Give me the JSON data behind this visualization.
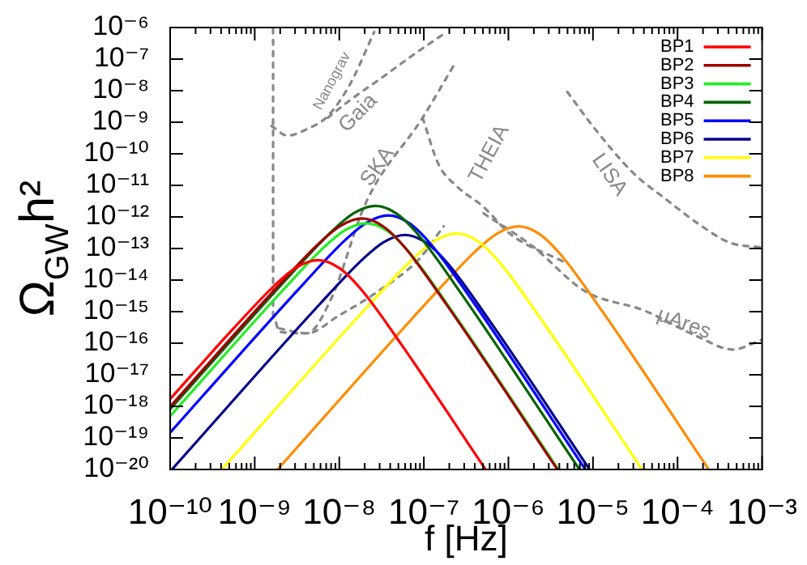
{
  "chart_data": {
    "type": "line",
    "xlabel": "f [Hz]",
    "ylabel": "Ω$_{GW}$h²",
    "log": "xy",
    "grid": false,
    "legend": "top right",
    "marker": "none",
    "xlim": [
      1e-10,
      0.001
    ],
    "ylim": [
      1e-20,
      1e-06
    ],
    "xticks": [
      {
        "value": 1e-10,
        "label": "10⁻¹⁰"
      },
      {
        "value": 2e-10,
        "label": null
      },
      {
        "value": 3e-10,
        "label": null
      },
      {
        "value": 4e-10,
        "label": null
      },
      {
        "value": 5e-10,
        "label": null
      },
      {
        "value": 6e-10,
        "label": null
      },
      {
        "value": 7e-10,
        "label": null
      },
      {
        "value": 8e-10,
        "label": null
      },
      {
        "value": 9e-10,
        "label": null
      },
      {
        "value": 1e-09,
        "label": "10⁻⁹"
      },
      {
        "value": 2e-09,
        "label": null
      },
      {
        "value": 3e-09,
        "label": null
      },
      {
        "value": 4e-09,
        "label": null
      },
      {
        "value": 5e-09,
        "label": null
      },
      {
        "value": 6e-09,
        "label": null
      },
      {
        "value": 7e-09,
        "label": null
      },
      {
        "value": 8e-09,
        "label": null
      },
      {
        "value": 9e-09,
        "label": null
      },
      {
        "value": 1e-08,
        "label": "10⁻⁸"
      },
      {
        "value": 2e-08,
        "label": null
      },
      {
        "value": 3e-08,
        "label": null
      },
      {
        "value": 4e-08,
        "label": null
      },
      {
        "value": 5e-08,
        "label": null
      },
      {
        "value": 6e-08,
        "label": null
      },
      {
        "value": 7e-08,
        "label": null
      },
      {
        "value": 8e-08,
        "label": null
      },
      {
        "value": 9e-08,
        "label": null
      },
      {
        "value": 1e-07,
        "label": "10⁻⁷"
      },
      {
        "value": 2e-07,
        "label": null
      },
      {
        "value": 3e-07,
        "label": null
      },
      {
        "value": 4e-07,
        "label": null
      },
      {
        "value": 5e-07,
        "label": null
      },
      {
        "value": 6e-07,
        "label": null
      },
      {
        "value": 7e-07,
        "label": null
      },
      {
        "value": 8e-07,
        "label": null
      },
      {
        "value": 9e-07,
        "label": null
      },
      {
        "value": 1e-06,
        "label": "10⁻⁶"
      },
      {
        "value": 2e-06,
        "label": null
      },
      {
        "value": 3e-06,
        "label": null
      },
      {
        "value": 4e-06,
        "label": null
      },
      {
        "value": 5e-06,
        "label": null
      },
      {
        "value": 6e-06,
        "label": null
      },
      {
        "value": 7e-06,
        "label": null
      },
      {
        "value": 8e-06,
        "label": null
      },
      {
        "value": 9e-06,
        "label": null
      },
      {
        "value": 1e-05,
        "label": "10⁻⁵"
      },
      {
        "value": 2e-05,
        "label": null
      },
      {
        "value": 3e-05,
        "label": null
      },
      {
        "value": 4e-05,
        "label": null
      },
      {
        "value": 5e-05,
        "label": null
      },
      {
        "value": 6e-05,
        "label": null
      },
      {
        "value": 7e-05,
        "label": null
      },
      {
        "value": 8e-05,
        "label": null
      },
      {
        "value": 9e-05,
        "label": null
      },
      {
        "value": 0.0001,
        "label": "10⁻⁴"
      },
      {
        "value": 0.0002,
        "label": null
      },
      {
        "value": 0.0003,
        "label": null
      },
      {
        "value": 0.0004,
        "label": null
      },
      {
        "value": 0.0005,
        "label": null
      },
      {
        "value": 0.0006,
        "label": null
      },
      {
        "value": 0.0007,
        "label": null
      },
      {
        "value": 0.0008,
        "label": null
      },
      {
        "value": 0.0009,
        "label": null
      },
      {
        "value": 0.001,
        "label": "10⁻³"
      }
    ],
    "yticks": [
      {
        "value": 1e-06,
        "label": "10⁻⁶"
      },
      {
        "value": 1e-07,
        "label": "10⁻⁷"
      },
      {
        "value": 1e-08,
        "label": "10⁻⁸"
      },
      {
        "value": 1e-09,
        "label": "10⁻⁹"
      },
      {
        "value": 1e-10,
        "label": "10⁻¹⁰"
      },
      {
        "value": 1e-11,
        "label": "10⁻¹¹"
      },
      {
        "value": 1e-12,
        "label": "10⁻¹²"
      },
      {
        "value": 1e-13,
        "label": "10⁻¹³"
      },
      {
        "value": 1e-14,
        "label": "10⁻¹⁴"
      },
      {
        "value": 1e-15,
        "label": "10⁻¹⁵"
      },
      {
        "value": 1e-16,
        "label": "10⁻¹⁶"
      },
      {
        "value": 1e-17,
        "label": "10⁻¹⁷"
      },
      {
        "value": 1e-18,
        "label": "10⁻¹⁸"
      },
      {
        "value": 1e-19,
        "label": "10⁻¹⁹"
      },
      {
        "value": 1e-20,
        "label": "10⁻²⁰"
      }
    ],
    "series": [
      {
        "name": "BP1",
        "color": "#ff0000",
        "x": [
          1e-10,
          5.62e-10,
          1.78e-09,
          3.16e-09,
          5.62e-09,
          1e-08,
          1.78e-08,
          5.62e-08,
          5.37e-07
        ],
        "values": [
          1.7e-18,
          2.95e-16,
          7.41e-15,
          2.57e-14,
          4.27e-14,
          2.4e-14,
          5.37e-15,
          7.94e-17,
          1e-20
        ]
      },
      {
        "name": "BP2",
        "color": "#a00000",
        "x": [
          1e-10,
          1.86e-09,
          5.89e-09,
          1.05e-08,
          1.86e-08,
          3.31e-08,
          5.89e-08,
          1.86e-07,
          3.8e-06
        ],
        "values": [
          9.77e-19,
          6.17e-15,
          1.55e-13,
          5.37e-13,
          8.91e-13,
          5.01e-13,
          1.12e-13,
          1.66e-15,
          1e-20
        ]
      },
      {
        "name": "BP3",
        "color": "#22ee22",
        "x": [
          1e-10,
          2.09e-09,
          6.61e-09,
          1.17e-08,
          2.09e-08,
          3.72e-08,
          6.61e-08,
          2.09e-07,
          3.89e-06
        ],
        "values": [
          4.9e-19,
          4.37e-15,
          1.1e-13,
          3.8e-13,
          6.31e-13,
          3.55e-13,
          7.94e-14,
          1.17e-15,
          1e-20
        ]
      },
      {
        "name": "BP4",
        "color": "#006400",
        "x": [
          1e-10,
          2.69e-09,
          8.51e-09,
          1.51e-08,
          2.69e-08,
          4.79e-08,
          8.51e-08,
          2.69e-07,
          6.92e-06
        ],
        "values": [
          8.13e-19,
          1.55e-14,
          3.89e-13,
          1.35e-12,
          2.24e-12,
          1.26e-12,
          2.82e-13,
          4.17e-15,
          1e-20
        ]
      },
      {
        "name": "BP5",
        "color": "#0000ff",
        "x": [
          1e-10,
          3.8e-09,
          1.2e-08,
          2.14e-08,
          3.8e-08,
          6.76e-08,
          1.2e-07,
          3.8e-07,
          8.13e-06
        ],
        "values": [
          1.48e-19,
          7.76e-15,
          1.95e-13,
          6.76e-13,
          1.12e-12,
          6.31e-13,
          1.41e-13,
          2.09e-15,
          1e-20
        ]
      },
      {
        "name": "BP6",
        "color": "#00008b",
        "x": [
          1.05e-10,
          6.03e-09,
          1.91e-08,
          3.39e-08,
          6.03e-08,
          1.07e-07,
          1.91e-07,
          6.03e-07,
          9.12e-06
        ],
        "values": [
          1e-20,
          1.86e-15,
          4.68e-14,
          1.62e-13,
          2.69e-13,
          1.51e-13,
          3.39e-14,
          5.01e-16,
          1e-20
        ]
      },
      {
        "name": "BP7",
        "color": "#ffff00",
        "x": [
          4.07e-10,
          2.45e-08,
          7.76e-08,
          1.38e-07,
          2.45e-07,
          4.37e-07,
          7.76e-07,
          2.45e-06,
          3.8e-05
        ],
        "values": [
          1e-20,
          2.09e-15,
          5.25e-14,
          1.82e-13,
          3.02e-13,
          1.7e-13,
          3.8e-14,
          5.62e-16,
          1e-20
        ]
      },
      {
        "name": "BP8",
        "color": "#ff8c00",
        "x": [
          1.86e-09,
          1.32e-07,
          4.17e-07,
          7.41e-07,
          1.32e-06,
          2.34e-06,
          4.17e-06,
          1.32e-05,
          0.000234
        ],
        "values": [
          1e-20,
          3.47e-15,
          8.71e-14,
          3.02e-13,
          5.01e-13,
          2.82e-13,
          6.31e-14,
          9.33e-16,
          1e-20
        ]
      },
      {
        "name": "Nanograv",
        "color": "#888888",
        "line_style": "dashed",
        "x": [
          1.58e-09,
          2.44e-09,
          4.13e-09,
          7.3e-09,
          1.35e-08,
          2.59e-08
        ],
        "values": [
          7.66e-10,
          3.77e-10,
          6.04e-10,
          1.56e-09,
          1.66e-08,
          7.26e-07
        ]
      },
      {
        "name": "Gaia",
        "color": "#888888",
        "line_style": "dashed",
        "x": [
          7.3e-09,
          1.35e-08,
          3.24e-08,
          7.11e-08,
          1.86e-07
        ],
        "values": [
          1.38e-09,
          5.07e-09,
          2.65e-08,
          1.23e-07,
          7.26e-07
        ]
      },
      {
        "name": "SKA",
        "color": "#888888",
        "line_style": "dashed",
        "x": [
          1.65e-09,
          1.65e-09,
          1.96e-09,
          4.13e-09,
          7.96e-09,
          2.08e-08,
          9.66e-08,
          2.42e-07
        ],
        "values": [
          9.2e-07,
          7.55e-16,
          2.31e-16,
          2.06e-16,
          2.46e-15,
          2.96e-12,
          1.38e-09,
          8.65e-08
        ]
      },
      {
        "name": "THEIA",
        "color": "#888888",
        "line_style": "dashed",
        "x": [
          9.66e-08,
          1.5e-07,
          2.42e-07,
          5.09e-07,
          1.07e-06,
          4.55e-06
        ],
        "values": [
          1.38e-09,
          4.49e-11,
          9.66e-12,
          2.07e-12,
          2.78e-13,
          3.73e-14
        ]
      },
      {
        "name": "LISA",
        "color": "#888888",
        "line_style": "dashed",
        "x": [
          4.97e-06,
          9.57e-06,
          2.99e-05,
          7.18e-05,
          0.000172,
          0.000413,
          0.000991
        ],
        "values": [
          9.16e-09,
          8.61e-10,
          2.48e-11,
          3.75e-12,
          6.37e-13,
          1.54e-13,
          1.08e-13
        ]
      },
      {
        "name": "μAres",
        "color": "#888888",
        "line_style": "dashed",
        "x": [
          5.09e-07,
          1.9e-06,
          8.04e-06,
          4.06e-05,
          0.000172,
          0.000451,
          0.000991
        ],
        "values": [
          1.29e-12,
          1.22e-13,
          4.45e-15,
          1.08e-15,
          1.63e-16,
          6.31e-17,
          1.28e-16
        ]
      },
      {
        "color": "#888888",
        "line_style": "dashed",
        "x": [
          1.96e-09,
          4.13e-09,
          9.91e-09,
          2.71e-08,
          8.85e-08,
          1.71e-07
        ],
        "values": [
          2.93e-16,
          2.06e-16,
          7.55e-16,
          3.95e-15,
          4.73e-14,
          5.04e-13
        ]
      }
    ]
  }
}
